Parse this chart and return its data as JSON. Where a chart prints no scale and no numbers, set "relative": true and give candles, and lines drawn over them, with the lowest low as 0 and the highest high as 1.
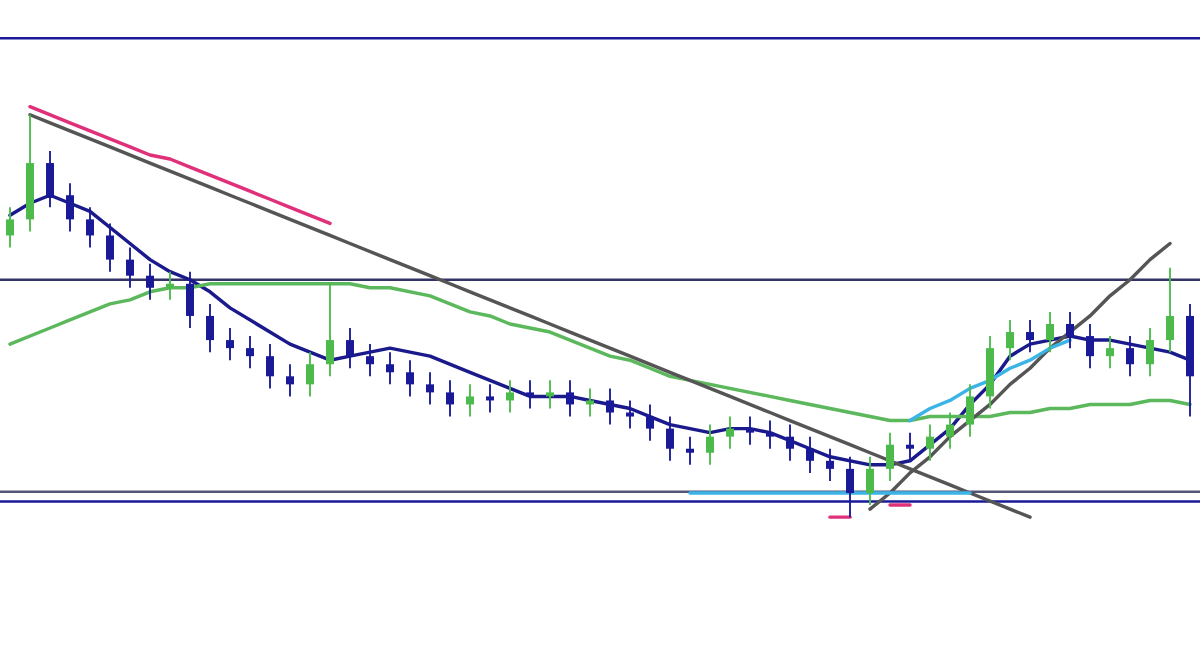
{
  "chart_data": {
    "type": "candlestick",
    "relative": true,
    "categories": [
      null,
      null,
      null,
      null,
      null,
      null,
      null,
      null,
      null,
      null,
      null,
      null,
      null,
      null,
      null,
      null,
      null,
      null,
      null,
      null,
      null,
      null,
      null,
      null,
      null,
      null,
      null,
      null,
      null,
      null,
      null,
      null,
      null,
      null,
      null,
      null,
      null,
      null,
      null,
      null,
      null,
      null,
      null,
      null,
      null,
      null,
      null,
      null,
      null,
      null,
      null,
      null,
      null,
      null,
      null,
      null,
      null,
      null,
      null,
      null
    ],
    "ohlc": [
      [
        0.7,
        0.77,
        0.67,
        0.74
      ],
      [
        0.74,
        1.0,
        0.71,
        0.88
      ],
      [
        0.88,
        0.91,
        0.77,
        0.8
      ],
      [
        0.8,
        0.83,
        0.71,
        0.74
      ],
      [
        0.74,
        0.77,
        0.67,
        0.7
      ],
      [
        0.7,
        0.73,
        0.61,
        0.64
      ],
      [
        0.64,
        0.67,
        0.57,
        0.6
      ],
      [
        0.6,
        0.63,
        0.54,
        0.57
      ],
      [
        0.57,
        0.61,
        0.54,
        0.58
      ],
      [
        0.58,
        0.61,
        0.47,
        0.5
      ],
      [
        0.5,
        0.53,
        0.41,
        0.44
      ],
      [
        0.44,
        0.47,
        0.39,
        0.42
      ],
      [
        0.42,
        0.45,
        0.37,
        0.4
      ],
      [
        0.4,
        0.43,
        0.32,
        0.35
      ],
      [
        0.35,
        0.38,
        0.3,
        0.33
      ],
      [
        0.33,
        0.41,
        0.3,
        0.38
      ],
      [
        0.38,
        0.58,
        0.35,
        0.44
      ],
      [
        0.44,
        0.47,
        0.37,
        0.4
      ],
      [
        0.4,
        0.43,
        0.35,
        0.38
      ],
      [
        0.38,
        0.41,
        0.33,
        0.36
      ],
      [
        0.36,
        0.39,
        0.3,
        0.33
      ],
      [
        0.33,
        0.36,
        0.28,
        0.31
      ],
      [
        0.31,
        0.34,
        0.25,
        0.28
      ],
      [
        0.28,
        0.33,
        0.25,
        0.3
      ],
      [
        0.3,
        0.33,
        0.26,
        0.29
      ],
      [
        0.29,
        0.34,
        0.26,
        0.31
      ],
      [
        0.31,
        0.34,
        0.27,
        0.3
      ],
      [
        0.3,
        0.34,
        0.27,
        0.31
      ],
      [
        0.31,
        0.34,
        0.25,
        0.28
      ],
      [
        0.28,
        0.32,
        0.25,
        0.29
      ],
      [
        0.29,
        0.32,
        0.23,
        0.26
      ],
      [
        0.26,
        0.29,
        0.22,
        0.25
      ],
      [
        0.25,
        0.28,
        0.19,
        0.22
      ],
      [
        0.22,
        0.25,
        0.14,
        0.17
      ],
      [
        0.17,
        0.2,
        0.13,
        0.16
      ],
      [
        0.16,
        0.23,
        0.13,
        0.2
      ],
      [
        0.2,
        0.25,
        0.17,
        0.22
      ],
      [
        0.22,
        0.25,
        0.18,
        0.21
      ],
      [
        0.21,
        0.24,
        0.17,
        0.2
      ],
      [
        0.2,
        0.23,
        0.14,
        0.17
      ],
      [
        0.17,
        0.2,
        0.11,
        0.14
      ],
      [
        0.14,
        0.17,
        0.09,
        0.12
      ],
      [
        0.12,
        0.15,
        0.0,
        0.06
      ],
      [
        0.06,
        0.15,
        0.03,
        0.12
      ],
      [
        0.12,
        0.21,
        0.09,
        0.18
      ],
      [
        0.18,
        0.21,
        0.14,
        0.17
      ],
      [
        0.17,
        0.23,
        0.14,
        0.2
      ],
      [
        0.2,
        0.26,
        0.17,
        0.23
      ],
      [
        0.23,
        0.33,
        0.2,
        0.3
      ],
      [
        0.3,
        0.45,
        0.27,
        0.42
      ],
      [
        0.42,
        0.49,
        0.39,
        0.46
      ],
      [
        0.46,
        0.49,
        0.41,
        0.44
      ],
      [
        0.44,
        0.51,
        0.41,
        0.48
      ],
      [
        0.48,
        0.51,
        0.42,
        0.45
      ],
      [
        0.45,
        0.48,
        0.37,
        0.4
      ],
      [
        0.4,
        0.45,
        0.37,
        0.42
      ],
      [
        0.42,
        0.45,
        0.35,
        0.38
      ],
      [
        0.38,
        0.47,
        0.35,
        0.44
      ],
      [
        0.44,
        0.62,
        0.41,
        0.5
      ],
      [
        0.5,
        0.53,
        0.25,
        0.35
      ]
    ],
    "colors": [
      "#4cbb4c",
      "#4cbb4c",
      "#1a1a99",
      "#1a1a99",
      "#1a1a99",
      "#1a1a99",
      "#1a1a99",
      "#1a1a99",
      "#4cbb4c",
      "#1a1a99",
      "#1a1a99",
      "#1a1a99",
      "#1a1a99",
      "#1a1a99",
      "#1a1a99",
      "#4cbb4c",
      "#4cbb4c",
      "#1a1a99",
      "#1a1a99",
      "#1a1a99",
      "#1a1a99",
      "#1a1a99",
      "#1a1a99",
      "#4cbb4c",
      "#1a1a99",
      "#4cbb4c",
      "#1a1a99",
      "#4cbb4c",
      "#1a1a99",
      "#4cbb4c",
      "#1a1a99",
      "#1a1a99",
      "#1a1a99",
      "#1a1a99",
      "#1a1a99",
      "#4cbb4c",
      "#4cbb4c",
      "#1a1a99",
      "#1a1a99",
      "#1a1a99",
      "#1a1a99",
      "#1a1a99",
      "#1a1a99",
      "#4cbb4c",
      "#4cbb4c",
      "#1a1a99",
      "#4cbb4c",
      "#4cbb4c",
      "#4cbb4c",
      "#4cbb4c",
      "#4cbb4c",
      "#1a1a99",
      "#4cbb4c",
      "#1a1a99",
      "#1a1a99",
      "#4cbb4c",
      "#1a1a99",
      "#4cbb4c",
      "#4cbb4c",
      "#1a1a99"
    ],
    "series": [
      {
        "type": "line",
        "color": "#1a1a8c",
        "values": [
          0.75,
          0.78,
          0.8,
          0.78,
          0.76,
          0.72,
          0.68,
          0.64,
          0.61,
          0.59,
          0.56,
          0.52,
          0.49,
          0.46,
          0.43,
          0.41,
          0.39,
          0.4,
          0.41,
          0.42,
          0.41,
          0.4,
          0.38,
          0.36,
          0.34,
          0.32,
          0.3,
          0.3,
          0.3,
          0.29,
          0.28,
          0.27,
          0.25,
          0.23,
          0.22,
          0.21,
          0.22,
          0.22,
          0.21,
          0.19,
          0.17,
          0.15,
          0.14,
          0.13,
          0.13,
          0.14,
          0.18,
          0.22,
          0.28,
          0.33,
          0.4,
          0.43,
          0.44,
          0.45,
          0.44,
          0.44,
          0.43,
          0.42,
          0.41,
          0.39
        ]
      },
      {
        "type": "line",
        "color": "#5cb85c",
        "values": [
          0.43,
          0.45,
          0.47,
          0.49,
          0.51,
          0.53,
          0.54,
          0.56,
          0.57,
          0.57,
          0.58,
          0.58,
          0.58,
          0.58,
          0.58,
          0.58,
          0.58,
          0.58,
          0.57,
          0.57,
          0.56,
          0.55,
          0.53,
          0.51,
          0.5,
          0.48,
          0.47,
          0.46,
          0.44,
          0.42,
          0.4,
          0.39,
          0.37,
          0.35,
          0.34,
          0.33,
          0.32,
          0.31,
          0.3,
          0.29,
          0.28,
          0.27,
          0.26,
          0.25,
          0.24,
          0.24,
          0.25,
          0.25,
          0.25,
          0.25,
          0.26,
          0.26,
          0.27,
          0.27,
          0.28,
          0.28,
          0.28,
          0.29,
          0.29,
          0.28
        ]
      },
      {
        "type": "line",
        "color": "#555555",
        "values": [
          null,
          1.0,
          0.98,
          0.96,
          0.94,
          0.92,
          0.9,
          0.88,
          0.86,
          0.84,
          0.82,
          0.8,
          0.78,
          0.76,
          0.74,
          0.72,
          0.7,
          0.68,
          0.66,
          0.64,
          0.62,
          0.6,
          0.58,
          0.56,
          0.54,
          0.52,
          0.5,
          0.48,
          0.46,
          0.44,
          0.42,
          0.4,
          0.38,
          0.36,
          0.34,
          0.32,
          0.3,
          0.28,
          0.26,
          0.24,
          0.22,
          0.2,
          0.18,
          0.16,
          0.14,
          0.12,
          0.1,
          0.08,
          0.06,
          0.04,
          0.02,
          0.0,
          null,
          null,
          null,
          null,
          null,
          null,
          null,
          null
        ]
      },
      {
        "type": "line",
        "color": "#555555",
        "values": [
          null,
          null,
          null,
          null,
          null,
          null,
          null,
          null,
          null,
          null,
          null,
          null,
          null,
          null,
          null,
          null,
          null,
          null,
          null,
          null,
          null,
          null,
          null,
          null,
          null,
          null,
          null,
          null,
          null,
          null,
          null,
          null,
          null,
          null,
          null,
          null,
          null,
          null,
          null,
          null,
          null,
          null,
          null,
          0.02,
          0.06,
          0.11,
          0.15,
          0.2,
          0.24,
          0.28,
          0.33,
          0.37,
          0.42,
          0.46,
          0.5,
          0.55,
          0.59,
          0.64,
          0.68,
          null
        ]
      },
      {
        "type": "line",
        "color": "#e0307a",
        "values": [
          null,
          1.02,
          1.0,
          0.98,
          0.96,
          0.94,
          0.92,
          0.9,
          0.89,
          0.87,
          0.85,
          0.83,
          0.81,
          0.79,
          0.77,
          0.75,
          0.73,
          null,
          null,
          null,
          null,
          null,
          null,
          null,
          null,
          null,
          null,
          null,
          null,
          null,
          null,
          null,
          null,
          null,
          null,
          null,
          null,
          null,
          null,
          null,
          null,
          null,
          null,
          null,
          null,
          null,
          null,
          null,
          null,
          null,
          null,
          null,
          null,
          null,
          null,
          null,
          null,
          null,
          null,
          null
        ]
      },
      {
        "type": "line",
        "color": "#3cb4e6",
        "values": [
          null,
          null,
          null,
          null,
          null,
          null,
          null,
          null,
          null,
          null,
          null,
          null,
          null,
          null,
          null,
          null,
          null,
          null,
          null,
          null,
          null,
          null,
          null,
          null,
          null,
          null,
          null,
          null,
          null,
          null,
          null,
          null,
          null,
          null,
          0.06,
          0.06,
          0.06,
          0.06,
          0.06,
          0.06,
          0.06,
          0.06,
          0.06,
          0.06,
          0.06,
          0.06,
          0.06,
          0.06,
          0.06,
          null,
          null,
          null,
          null,
          null,
          null,
          null,
          null,
          null,
          null,
          null
        ]
      },
      {
        "type": "line",
        "color": "#3cb4e6",
        "values": [
          null,
          null,
          null,
          null,
          null,
          null,
          null,
          null,
          null,
          null,
          null,
          null,
          null,
          null,
          null,
          null,
          null,
          null,
          null,
          null,
          null,
          null,
          null,
          null,
          null,
          null,
          null,
          null,
          null,
          null,
          null,
          null,
          null,
          null,
          null,
          null,
          null,
          null,
          null,
          null,
          null,
          null,
          null,
          null,
          null,
          0.24,
          0.27,
          0.29,
          0.32,
          0.34,
          0.37,
          0.39,
          0.42,
          0.44,
          null,
          null,
          null,
          null,
          null,
          null
        ]
      },
      {
        "type": "line",
        "color": "#e0307a",
        "values": [
          null,
          null,
          null,
          null,
          null,
          null,
          null,
          null,
          null,
          null,
          null,
          null,
          null,
          null,
          null,
          null,
          null,
          null,
          null,
          null,
          null,
          null,
          null,
          null,
          null,
          null,
          null,
          null,
          null,
          null,
          null,
          null,
          null,
          null,
          null,
          null,
          null,
          null,
          null,
          null,
          null,
          0.0,
          0.0,
          null,
          null,
          null,
          null,
          null,
          null,
          null,
          null,
          null,
          null,
          null,
          null,
          null,
          null,
          null,
          null,
          null
        ]
      },
      {
        "type": "line",
        "color": "#e0307a",
        "values": [
          null,
          null,
          null,
          null,
          null,
          null,
          null,
          null,
          null,
          null,
          null,
          null,
          null,
          null,
          null,
          null,
          null,
          null,
          null,
          null,
          null,
          null,
          null,
          null,
          null,
          null,
          null,
          null,
          null,
          null,
          null,
          null,
          null,
          null,
          null,
          null,
          null,
          null,
          null,
          null,
          null,
          null,
          null,
          null,
          0.03,
          0.03,
          null,
          null,
          null,
          null,
          null,
          null,
          null,
          null,
          null,
          null,
          null,
          null,
          null,
          null
        ]
      }
    ],
    "ref_lines": [
      {
        "axis": "y",
        "value": 1.19,
        "color": "#1a1a99"
      },
      {
        "axis": "y",
        "value": 0.59,
        "color": "#333366"
      },
      {
        "axis": "y",
        "value": 0.063,
        "color": "#555577"
      },
      {
        "axis": "y",
        "value": 0.039,
        "color": "#1a1a99"
      }
    ]
  }
}
